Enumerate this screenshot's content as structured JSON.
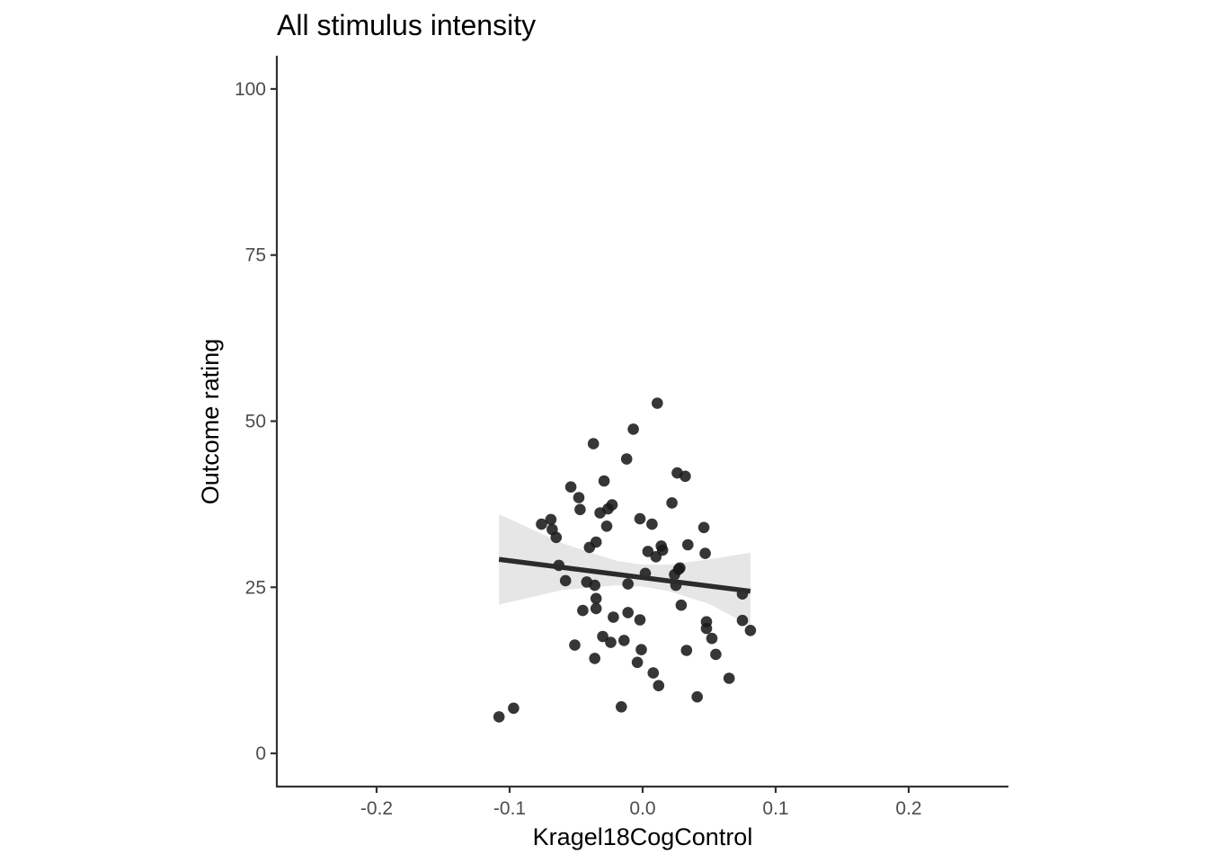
{
  "chart_data": {
    "type": "scatter",
    "title": "All stimulus intensity",
    "xlabel": "Kragel18CogControl",
    "ylabel": "Outcome rating",
    "xlim": [
      -0.275,
      0.275
    ],
    "ylim": [
      -5,
      105
    ],
    "x_ticks": [
      -0.2,
      -0.1,
      0.0,
      0.1,
      0.2
    ],
    "x_tick_labels": [
      "-0.2",
      "-0.1",
      "0.0",
      "0.1",
      "0.2"
    ],
    "y_ticks": [
      0,
      25,
      50,
      75,
      100
    ],
    "y_tick_labels": [
      "0",
      "25",
      "50",
      "75",
      "100"
    ],
    "grid": false,
    "point_color": "#1a1a1a",
    "line_color": "#2b2b2b",
    "band_color": "#e6e6e6",
    "points": [
      [
        -0.108,
        5.5
      ],
      [
        -0.097,
        6.8
      ],
      [
        -0.076,
        34.5
      ],
      [
        -0.069,
        35.2
      ],
      [
        -0.068,
        33.7
      ],
      [
        -0.065,
        32.5
      ],
      [
        -0.063,
        28.3
      ],
      [
        -0.058,
        26.0
      ],
      [
        -0.054,
        40.1
      ],
      [
        -0.051,
        16.3
      ],
      [
        -0.048,
        38.5
      ],
      [
        -0.047,
        36.7
      ],
      [
        -0.045,
        21.5
      ],
      [
        -0.042,
        25.8
      ],
      [
        -0.04,
        31.0
      ],
      [
        -0.037,
        46.6
      ],
      [
        -0.036,
        14.3
      ],
      [
        -0.036,
        25.3
      ],
      [
        -0.035,
        21.8
      ],
      [
        -0.035,
        23.3
      ],
      [
        -0.035,
        31.8
      ],
      [
        -0.032,
        36.2
      ],
      [
        -0.03,
        17.6
      ],
      [
        -0.029,
        41.0
      ],
      [
        -0.027,
        34.2
      ],
      [
        -0.026,
        36.8
      ],
      [
        -0.024,
        16.7
      ],
      [
        -0.023,
        37.4
      ],
      [
        -0.022,
        20.5
      ],
      [
        -0.016,
        7.0
      ],
      [
        -0.014,
        17.0
      ],
      [
        -0.012,
        44.3
      ],
      [
        -0.011,
        25.5
      ],
      [
        -0.011,
        21.2
      ],
      [
        -0.007,
        48.8
      ],
      [
        -0.004,
        13.7
      ],
      [
        -0.002,
        35.3
      ],
      [
        -0.002,
        20.1
      ],
      [
        -0.001,
        15.6
      ],
      [
        0.002,
        27.1
      ],
      [
        0.004,
        30.4
      ],
      [
        0.007,
        34.5
      ],
      [
        0.008,
        12.1
      ],
      [
        0.01,
        29.6
      ],
      [
        0.011,
        52.7
      ],
      [
        0.012,
        10.2
      ],
      [
        0.014,
        31.2
      ],
      [
        0.015,
        30.6
      ],
      [
        0.022,
        37.7
      ],
      [
        0.024,
        26.9
      ],
      [
        0.025,
        25.3
      ],
      [
        0.026,
        42.2
      ],
      [
        0.027,
        27.7
      ],
      [
        0.028,
        27.9
      ],
      [
        0.029,
        22.3
      ],
      [
        0.032,
        41.7
      ],
      [
        0.033,
        15.5
      ],
      [
        0.034,
        31.4
      ],
      [
        0.041,
        8.5
      ],
      [
        0.046,
        34.0
      ],
      [
        0.047,
        30.1
      ],
      [
        0.048,
        19.8
      ],
      [
        0.048,
        18.8
      ],
      [
        0.052,
        17.3
      ],
      [
        0.055,
        14.9
      ],
      [
        0.065,
        11.3
      ],
      [
        0.075,
        24.0
      ],
      [
        0.075,
        20.0
      ],
      [
        0.081,
        18.5
      ]
    ],
    "fit": {
      "x": [
        -0.108,
        0.081
      ],
      "y": [
        29.2,
        24.4
      ]
    },
    "ci_band": {
      "x": [
        -0.108,
        -0.06,
        -0.02,
        0.0,
        0.02,
        0.05,
        0.081
      ],
      "lower": [
        22.4,
        24.6,
        25.3,
        25.1,
        24.4,
        22.5,
        19.2
      ],
      "upper": [
        36.0,
        31.6,
        29.0,
        28.4,
        28.4,
        29.2,
        30.2
      ]
    }
  }
}
